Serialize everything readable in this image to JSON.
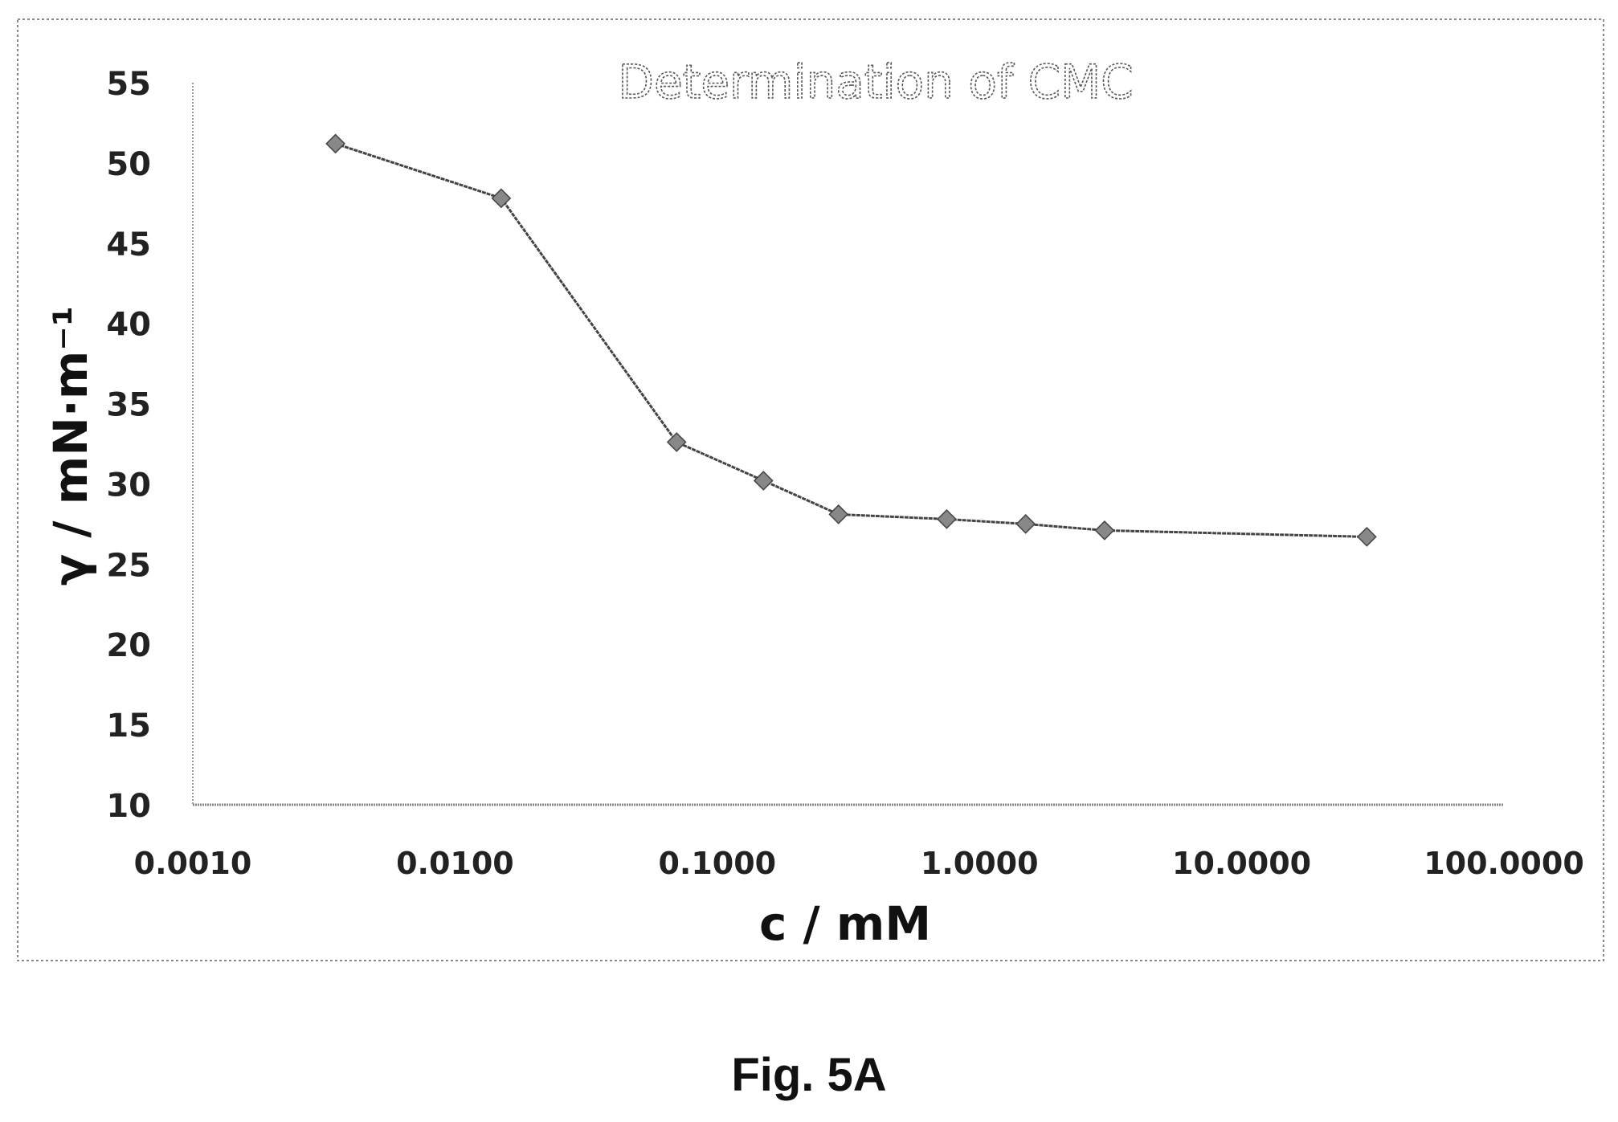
{
  "chart_data": {
    "type": "line",
    "title": "Determination of CMC",
    "xlabel": "c / mM",
    "ylabel": "γ / mN·m⁻¹",
    "x_scale": "log",
    "xlim": [
      0.001,
      100
    ],
    "ylim": [
      10,
      55
    ],
    "x_ticks": [
      "0.0010",
      "0.0100",
      "0.1000",
      "1.0000",
      "10.0000",
      "100.0000"
    ],
    "y_ticks": [
      "10",
      "15",
      "20",
      "25",
      "30",
      "35",
      "40",
      "45",
      "50",
      "55"
    ],
    "grid": false,
    "series": [
      {
        "x": [
          0.0035,
          0.015,
          0.07,
          0.15,
          0.29,
          0.75,
          1.5,
          3.0,
          30.0
        ],
        "y": [
          51.2,
          47.8,
          32.6,
          30.2,
          28.1,
          27.8,
          27.5,
          27.1,
          26.7
        ]
      }
    ],
    "line_color": "#444444"
  },
  "figure": {
    "caption": "Fig. 5A"
  }
}
